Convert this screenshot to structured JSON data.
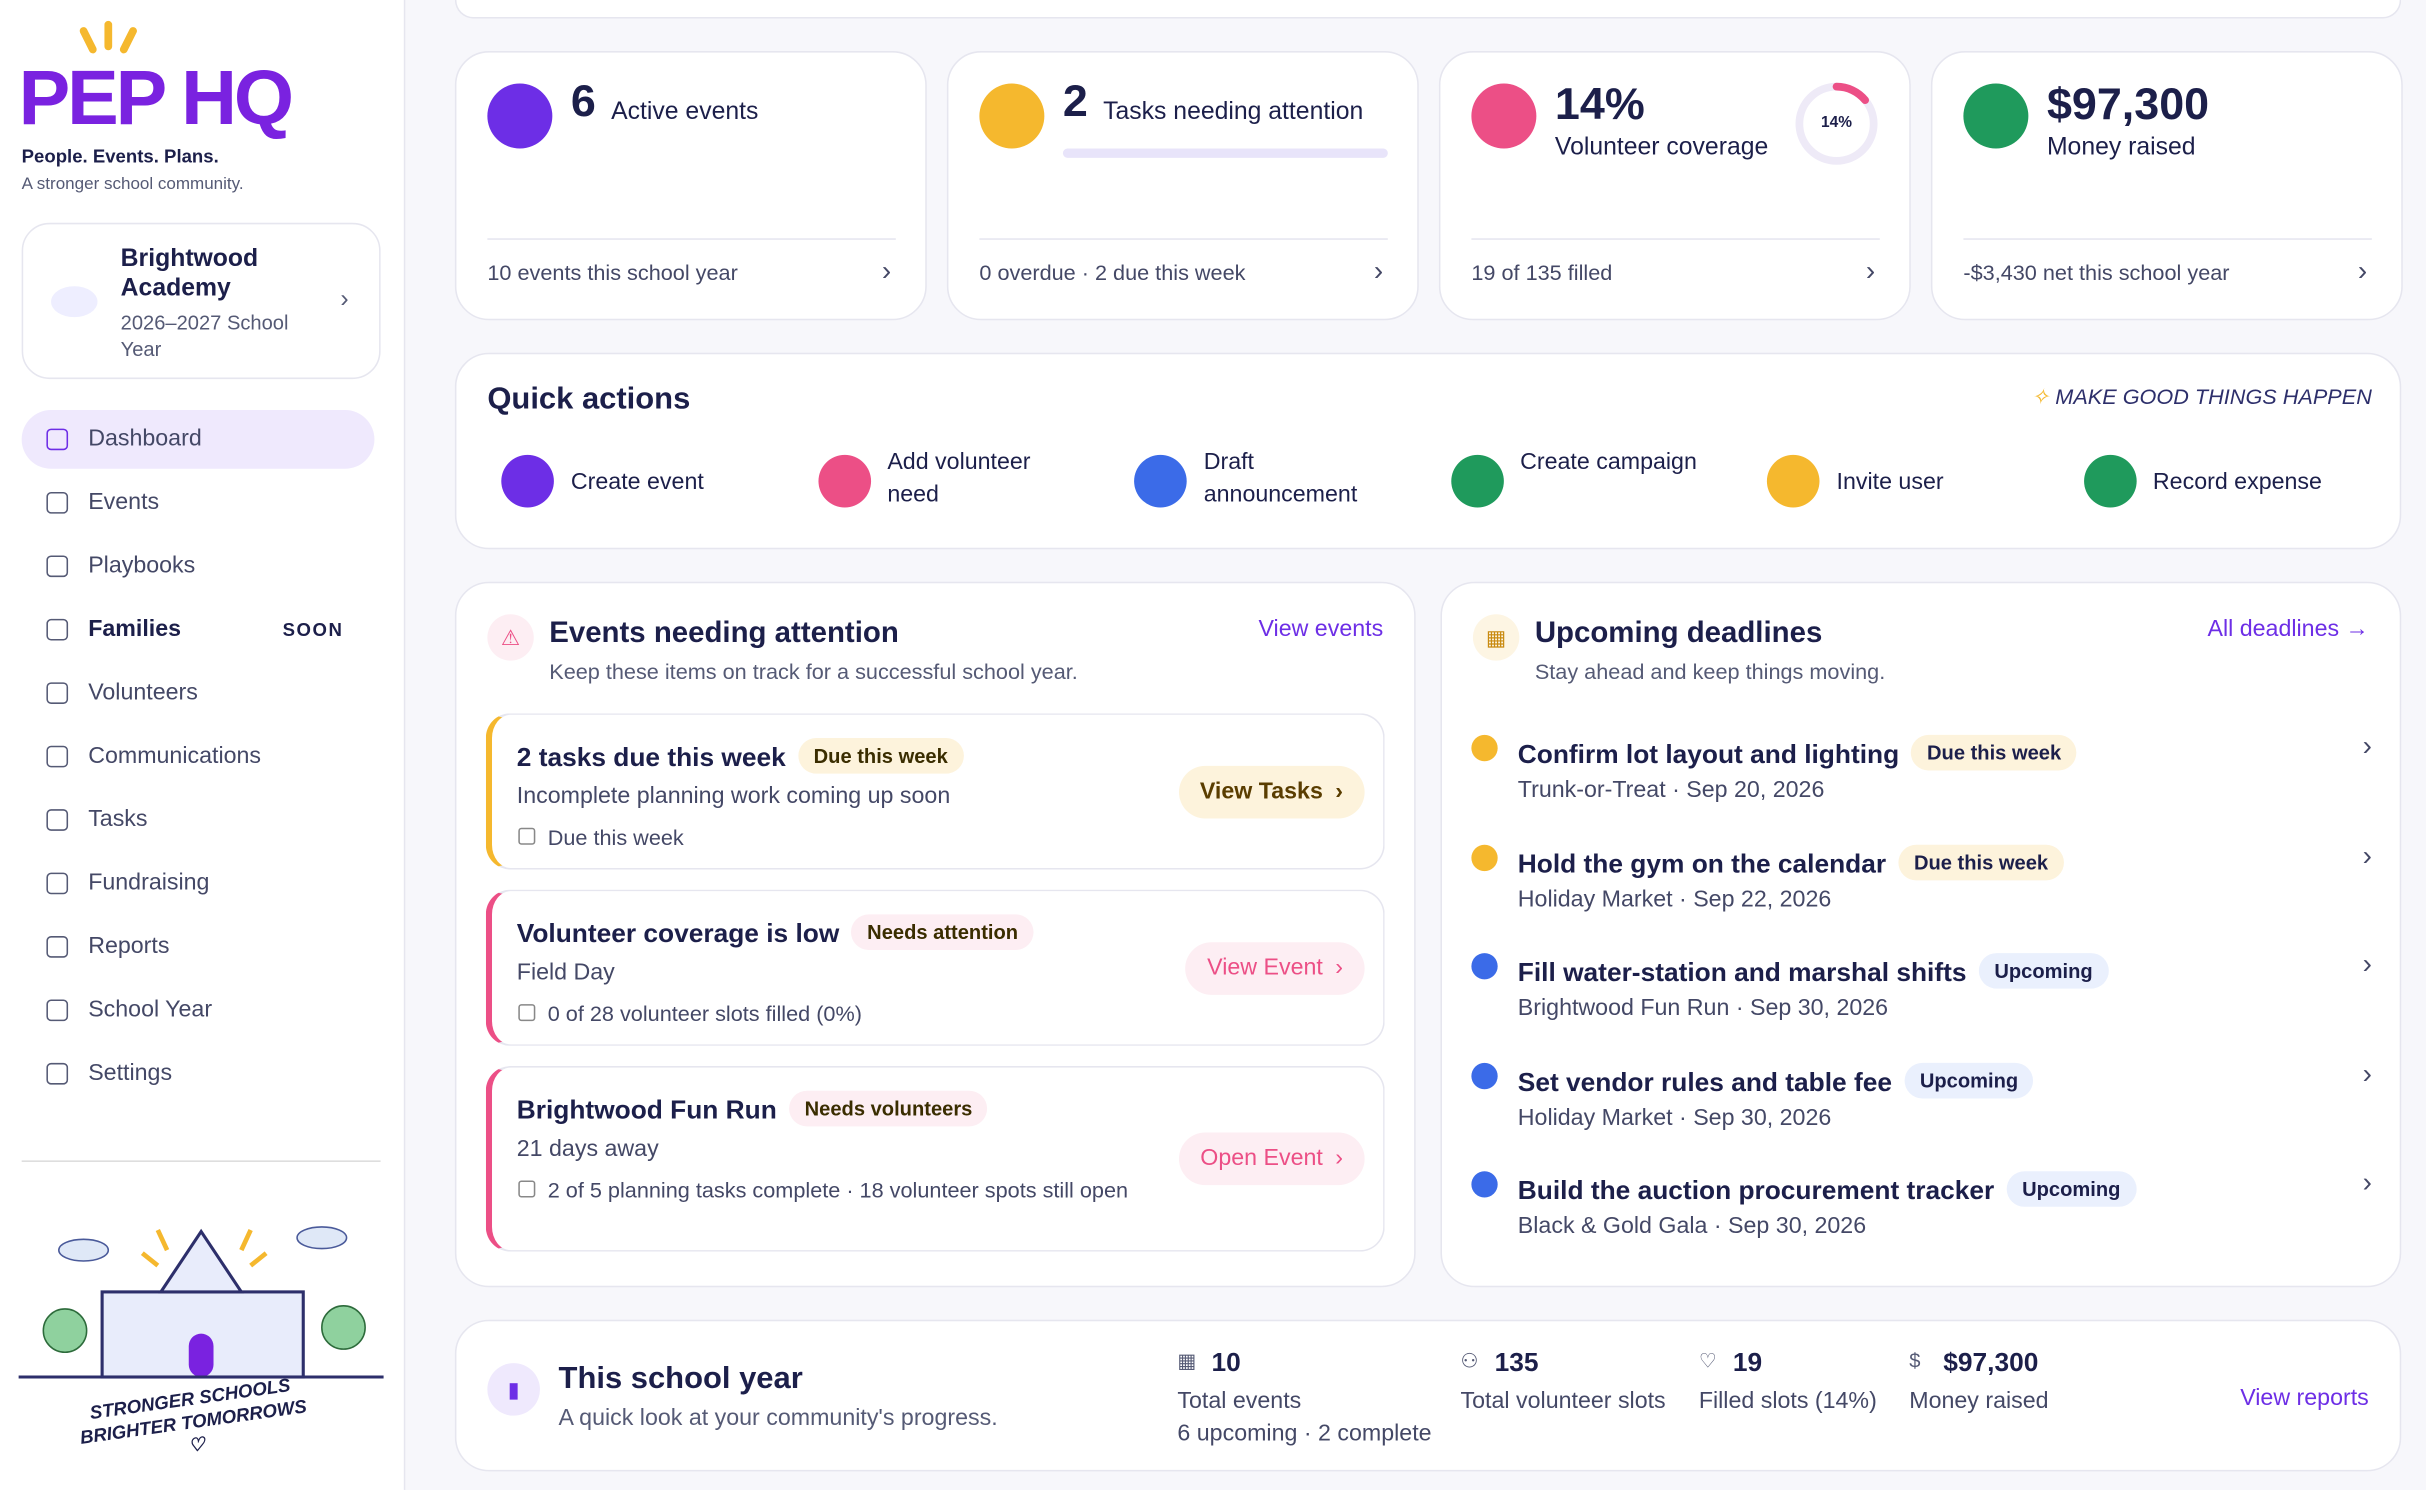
{
  "brand": {
    "logo": "PEP HQ",
    "tagline": "People. Events. Plans.",
    "subtitle": "A stronger school community."
  },
  "school": {
    "name": "Brightwood Academy",
    "year": "2026–2027 School Year"
  },
  "nav": [
    {
      "label": "Dashboard",
      "active": true
    },
    {
      "label": "Events"
    },
    {
      "label": "Playbooks"
    },
    {
      "label": "Families",
      "badge": "SOON"
    },
    {
      "label": "Volunteers"
    },
    {
      "label": "Communications"
    },
    {
      "label": "Tasks"
    },
    {
      "label": "Fundraising"
    },
    {
      "label": "Reports"
    },
    {
      "label": "School Year"
    },
    {
      "label": "Settings"
    }
  ],
  "illustration": {
    "line1": "STRONGER SCHOOLS",
    "line2": "BRIGHTER TOMORROWS"
  },
  "stats": [
    {
      "value": "6",
      "label": "Active events",
      "footer": "10 events this school year",
      "color": "#6d2ee6"
    },
    {
      "value": "2",
      "label": "Tasks needing attention",
      "footer": "0 overdue · 2 due this week",
      "color": "#f5b82e"
    },
    {
      "value": "14%",
      "label": "Volunteer coverage",
      "ring_label": "14%",
      "ring": 14,
      "footer": "19 of 135 filled",
      "color": "#ec4f86"
    },
    {
      "value": "$97,300",
      "label": "Money raised",
      "footer": "-$3,430 net this school year",
      "color": "#1f9a5c"
    }
  ],
  "quick_actions": {
    "title": "Quick actions",
    "tagline": "MAKE GOOD THINGS HAPPEN",
    "actions": [
      {
        "label": "Create event",
        "color": "#6d2ee6"
      },
      {
        "label": "Add volunteer need",
        "color": "#ec4f86"
      },
      {
        "label": "Draft announcement",
        "color": "#3b6be8"
      },
      {
        "label": "Create campaign",
        "color": "#1f9a5c"
      },
      {
        "label": "Invite user",
        "color": "#f5b82e"
      },
      {
        "label": "Record expense",
        "color": "#1f9a5c"
      }
    ]
  },
  "attention": {
    "title": "Events needing attention",
    "subtitle": "Keep these items on track for a successful school year.",
    "link": "View events",
    "items": [
      {
        "title": "2 tasks due this week",
        "badge": "Due this week",
        "desc": "Incomplete planning work coming up soon",
        "meta": "Due this week",
        "button": "View Tasks",
        "color": "#f5b82e"
      },
      {
        "title": "Volunteer coverage is low",
        "badge": "Needs attention",
        "desc": "Field Day",
        "meta": "0 of 28 volunteer slots filled (0%)",
        "button": "View Event",
        "color": "#ec4f86"
      },
      {
        "title": "Brightwood Fun Run",
        "badge": "Needs volunteers",
        "desc": "21 days away",
        "meta": "2 of 5 planning tasks complete · 18 volunteer spots still open",
        "button": "Open Event",
        "color": "#ec4f86"
      }
    ]
  },
  "deadlines": {
    "title": "Upcoming deadlines",
    "subtitle": "Stay ahead and keep things moving.",
    "link": "All deadlines →",
    "items": [
      {
        "title": "Confirm lot layout and lighting",
        "badge": "Due this week",
        "context": "Trunk-or-Treat · Sep 20, 2026",
        "color": "#f5b82e"
      },
      {
        "title": "Hold the gym on the calendar",
        "badge": "Due this week",
        "context": "Holiday Market · Sep 22, 2026",
        "color": "#f5b82e"
      },
      {
        "title": "Fill water-station and marshal shifts",
        "badge": "Upcoming",
        "context": "Brightwood Fun Run · Sep 30, 2026",
        "color": "#3b6be8"
      },
      {
        "title": "Set vendor rules and table fee",
        "badge": "Upcoming",
        "context": "Holiday Market · Sep 30, 2026",
        "color": "#3b6be8"
      },
      {
        "title": "Build the auction procurement tracker",
        "badge": "Upcoming",
        "context": "Black & Gold Gala · Sep 30, 2026",
        "color": "#3b6be8"
      }
    ]
  },
  "year": {
    "title": "This school year",
    "subtitle": "A quick look at your community's progress.",
    "link": "View reports",
    "stats": [
      {
        "value": "10",
        "label": "Total events",
        "detail": "6 upcoming · 2 complete"
      },
      {
        "value": "135",
        "label": "Total volunteer slots"
      },
      {
        "value": "19",
        "label": "Filled slots (14%)"
      },
      {
        "value": "$97,300",
        "label": "Money raised"
      }
    ]
  }
}
